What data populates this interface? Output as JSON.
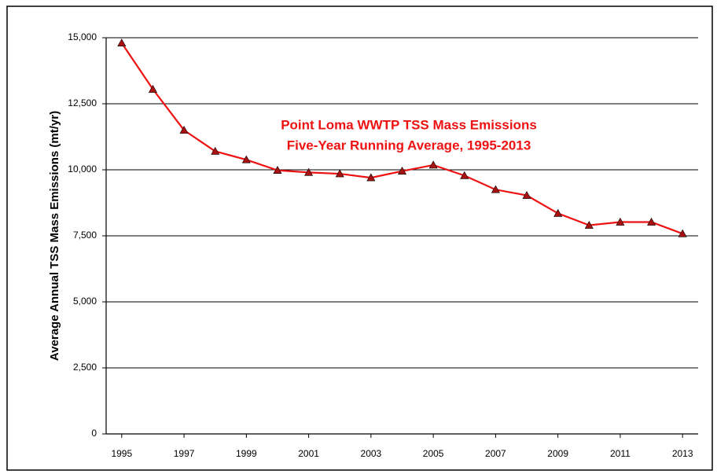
{
  "chart_data": {
    "type": "line",
    "title": "Point Loma WWTP TSS Mass Emissions",
    "subtitle": "Five-Year Running Average, 1995-2013",
    "y_label": "Average Annual TSS Mass Emissions (mt/yr)",
    "x": [
      1995,
      1996,
      1997,
      1998,
      1999,
      2000,
      2001,
      2002,
      2003,
      2004,
      2005,
      2006,
      2007,
      2008,
      2009,
      2010,
      2011,
      2012,
      2013
    ],
    "series": [
      {
        "name": "TSS Mass Emissions",
        "color": "#ee1111",
        "marker_color": "#aa1111",
        "values": [
          14800,
          13050,
          11500,
          10700,
          10380,
          9980,
          9900,
          9850,
          9700,
          9950,
          10180,
          9780,
          9250,
          9030,
          8350,
          7900,
          8020,
          8020,
          7580
        ]
      }
    ],
    "xlim": [
      1994.5,
      2013.5
    ],
    "xticks": [
      1995,
      1997,
      1999,
      2001,
      2003,
      2005,
      2007,
      2009,
      2011,
      2013
    ],
    "ylim": [
      0,
      15000
    ],
    "yticks": [
      0,
      {
        "value": 2500,
        "label": "2,500"
      },
      {
        "value": 5000,
        "label": "5,000"
      },
      {
        "value": 7500,
        "label": "7,500"
      },
      {
        "value": 10000,
        "label": "10,000"
      },
      {
        "value": 12500,
        "label": "12,500"
      },
      {
        "value": 15000,
        "label": "15,000"
      }
    ],
    "grid": true
  }
}
